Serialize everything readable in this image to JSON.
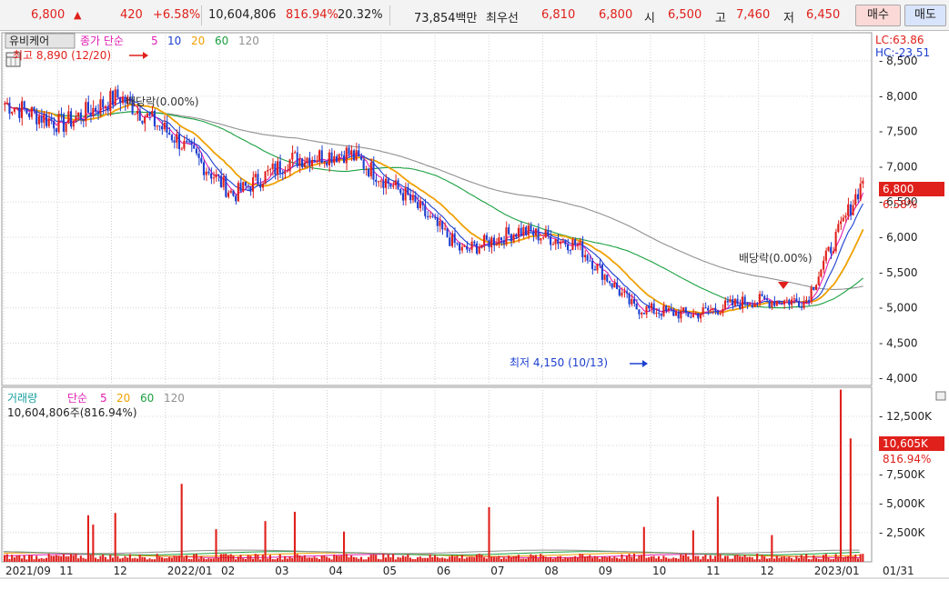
{
  "ticker": {
    "price": "6,800",
    "change": "420",
    "change_pct": "+6.58%",
    "volume": "10,604,806",
    "volume_ratio": "816.94%",
    "turnover_pct": "20.32%",
    "trade_value": "73,854백만",
    "best_ask_label": "최우선",
    "best_ask": "6,810",
    "best_bid": "6,800",
    "open_label": "시",
    "open": "6,500",
    "high_label": "고",
    "high": "7,460",
    "low_label": "저",
    "low": "6,450",
    "buy_label": "매수",
    "sell_label": "매도"
  },
  "price_panel": {
    "stock_name": "유비케어",
    "legend_main": "종가 단순",
    "ma_labels": [
      "5",
      "10",
      "20",
      "60",
      "120"
    ],
    "ma_colors": [
      "#e01fb3",
      "#1d3fd0",
      "#f0a000",
      "#1aa040",
      "#909090"
    ],
    "lc_text": "LC:63.86",
    "hc_text": "HC:-23.51",
    "current_price_tag": "6,800",
    "current_pct_tag": "6.58%",
    "high_annotation": "최고 8,890 (12/20)",
    "low_annotation": "최저 4,150 (10/13)",
    "dividend_annotations": [
      "배당락(0.00%)",
      "배당락(0.00%)"
    ]
  },
  "volume_panel": {
    "legend_main": "거래량",
    "legend_ma": "단순",
    "ma_labels": [
      "5",
      "20",
      "60",
      "120"
    ],
    "ma_colors": [
      "#e01fb3",
      "#f0a000",
      "#1aa040",
      "#909090"
    ],
    "volume_text": "10,604,806주(816.94%)",
    "current_volume_tag": "10,605K",
    "current_pct_tag": "816.94%"
  },
  "x_axis": {
    "labels": [
      "2021/09",
      "11",
      "12",
      "2022/01",
      "02",
      "03",
      "04",
      "05",
      "06",
      "07",
      "08",
      "09",
      "10",
      "11",
      "12",
      "2023/01",
      "01/31"
    ]
  },
  "chart_data": [
    {
      "type": "candlestick",
      "ylim": [
        3900,
        8900
      ],
      "yticks": [
        "4,000",
        "4,500",
        "5,000",
        "5,500",
        "6,000",
        "6,500",
        "7,000",
        "7,500",
        "8,000",
        "8,500"
      ],
      "ytick_values": [
        4000,
        4500,
        5000,
        5500,
        6000,
        6500,
        7000,
        7500,
        8000,
        8500
      ],
      "months": [
        "2021/09",
        "11",
        "12",
        "2022/01",
        "02",
        "03",
        "04",
        "05",
        "06",
        "07",
        "08",
        "09",
        "10",
        "11",
        "12",
        "2023/01"
      ],
      "close_by_month": [
        7900,
        7600,
        8000,
        7400,
        6600,
        7100,
        7200,
        6600,
        5800,
        6100,
        5900,
        5000,
        4900,
        5100,
        5100,
        6800
      ],
      "high": 8890,
      "low": 4150,
      "last_close": 6800
    },
    {
      "type": "bar",
      "ylim": [
        0,
        15000
      ],
      "yticks": [
        "2,500K",
        "5,000K",
        "7,500K",
        "10,000K",
        "12,500K"
      ],
      "ytick_values": [
        2500,
        5000,
        7500,
        10000,
        12500
      ],
      "spikes_k": [
        4000,
        3200,
        4200,
        6700,
        2800,
        3500,
        4300,
        2600,
        4700,
        3000,
        2700,
        5600,
        2300,
        14800,
        10605
      ],
      "last_volume_k": 10605
    }
  ]
}
